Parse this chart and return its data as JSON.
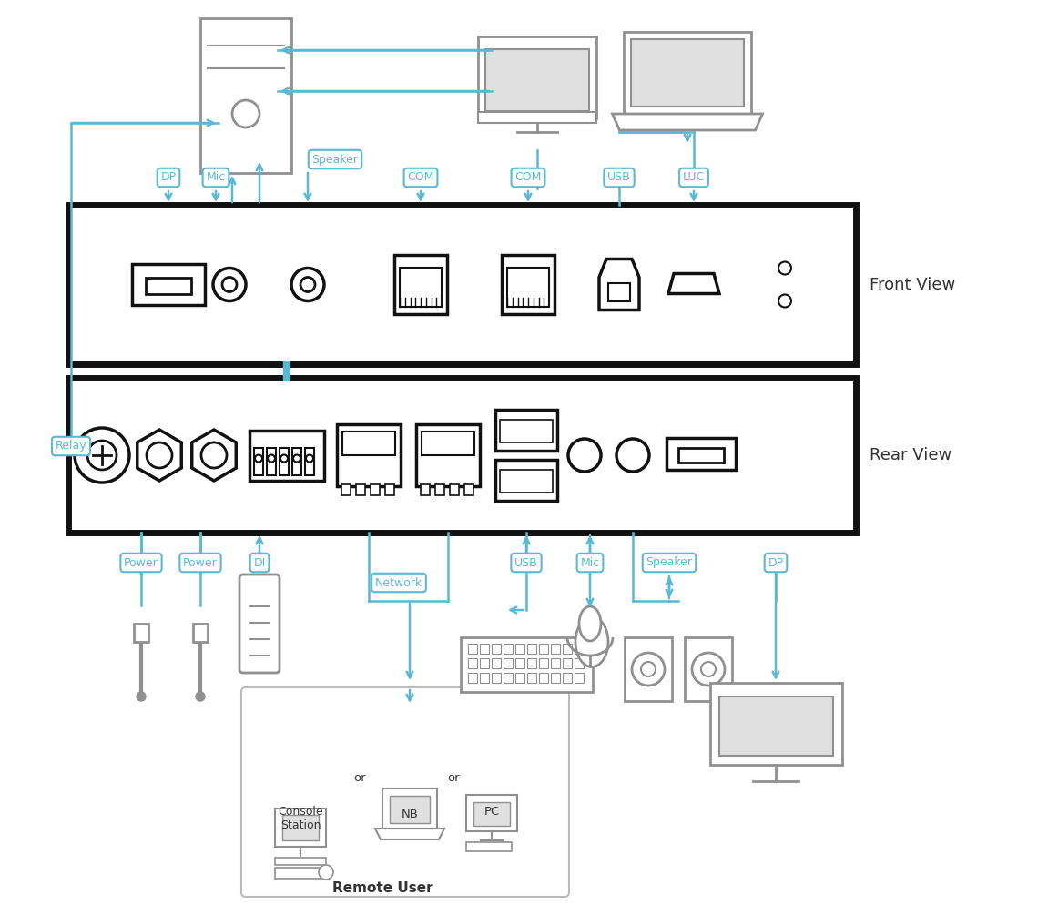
{
  "bg_color": "#ffffff",
  "line_color": "#5bb8d4",
  "device_color": "#909090",
  "border_color": "#111111",
  "text_color": "#333333",
  "front_view_label": "Front View",
  "rear_view_label": "Rear View",
  "relay_label": "Relay",
  "front_labels": [
    "DP",
    "Mic",
    "Speaker",
    "COM",
    "COM",
    "USB",
    "LUC"
  ],
  "rear_labels": [
    "Power",
    "Power",
    "DI",
    "Network",
    "USB",
    "Mic",
    "Speaker",
    "DP"
  ],
  "remote_user_label": "Remote User"
}
